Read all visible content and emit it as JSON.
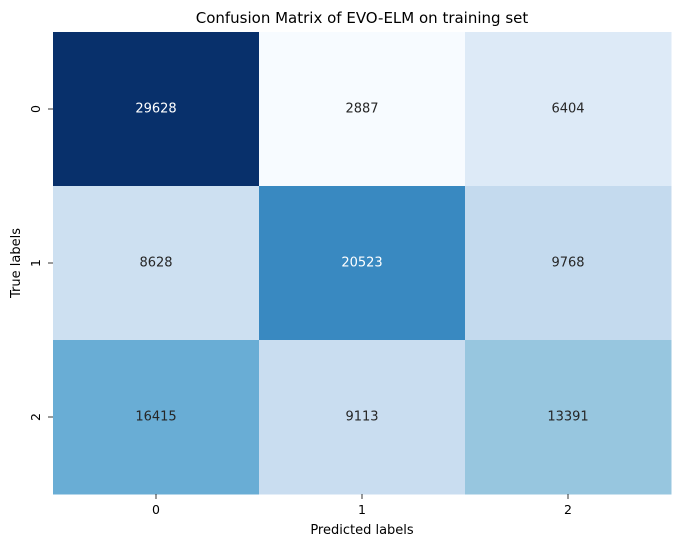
{
  "chart_data": {
    "type": "heatmap",
    "title": "Confusion Matrix of EVO-ELM on training set",
    "xlabel": "Predicted labels",
    "ylabel": "True labels",
    "x_categories": [
      "0",
      "1",
      "2"
    ],
    "y_categories": [
      "0",
      "1",
      "2"
    ],
    "values": [
      [
        29628,
        2887,
        6404
      ],
      [
        8628,
        20523,
        9768
      ],
      [
        16415,
        9113,
        13391
      ]
    ],
    "colormap": "Blues",
    "colorbar": false,
    "annotations": true
  }
}
